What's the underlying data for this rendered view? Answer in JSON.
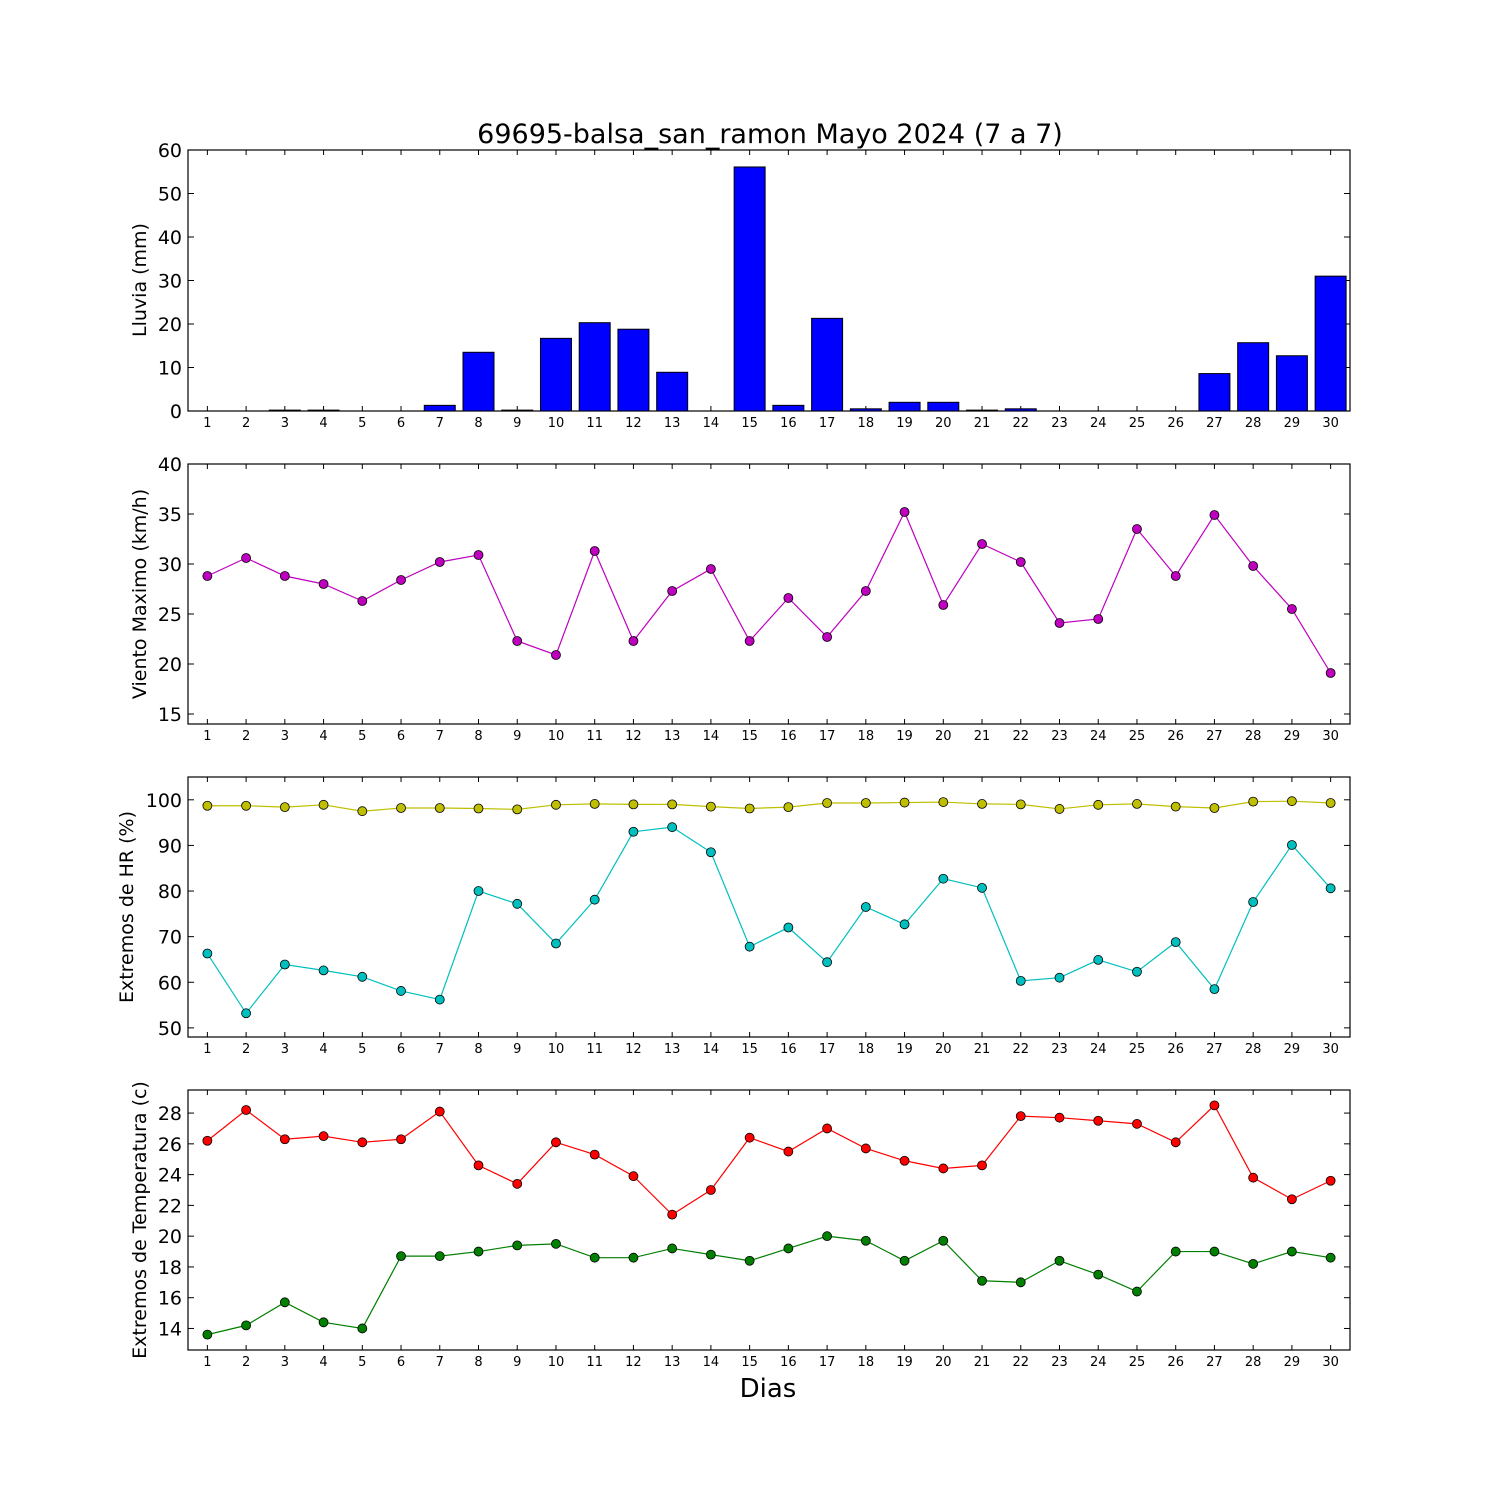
{
  "chart_data": [
    {
      "type": "bar",
      "title": "69695-balsa_san_ramon Mayo 2024  (7 a 7)",
      "ylabel": "Lluvia (mm)",
      "xlabel": "",
      "ylim": [
        0,
        60
      ],
      "yticks": [
        0,
        10,
        20,
        30,
        40,
        50,
        60
      ],
      "categories": [
        1,
        2,
        3,
        4,
        5,
        6,
        7,
        8,
        9,
        10,
        11,
        12,
        13,
        14,
        15,
        16,
        17,
        18,
        19,
        20,
        21,
        22,
        23,
        24,
        25,
        26,
        27,
        28,
        29,
        30
      ],
      "values": [
        0,
        0,
        0.2,
        0.2,
        0,
        0,
        1.3,
        13.5,
        0.2,
        16.7,
        20.3,
        18.8,
        8.9,
        0,
        56.1,
        1.3,
        21.3,
        0.5,
        2.0,
        2.0,
        0.2,
        0.5,
        0,
        0,
        0,
        0,
        8.6,
        15.7,
        12.7,
        31.0
      ],
      "color": "#0000ff",
      "grid": false
    },
    {
      "type": "line",
      "ylabel": "Viento Maximo (km/h)",
      "xlabel": "",
      "ylim": [
        14,
        40
      ],
      "yticks": [
        15,
        20,
        25,
        30,
        35,
        40
      ],
      "x": [
        1,
        2,
        3,
        4,
        5,
        6,
        7,
        8,
        9,
        10,
        11,
        12,
        13,
        14,
        15,
        16,
        17,
        18,
        19,
        20,
        21,
        22,
        23,
        24,
        25,
        26,
        27,
        28,
        29,
        30
      ],
      "series": [
        {
          "values": [
            28.8,
            30.6,
            28.8,
            28.0,
            26.3,
            28.4,
            30.2,
            30.9,
            22.3,
            20.9,
            31.3,
            22.3,
            27.3,
            29.5,
            22.3,
            26.6,
            22.7,
            27.3,
            35.2,
            25.9,
            32.0,
            30.2,
            24.1,
            24.5,
            33.5,
            28.8,
            34.9,
            29.8,
            25.5,
            19.1
          ],
          "color": "#bf00bf"
        }
      ],
      "grid": false
    },
    {
      "type": "line",
      "ylabel": "Extremos de HR (%)",
      "xlabel": "",
      "ylim": [
        48,
        105
      ],
      "yticks": [
        50,
        60,
        70,
        80,
        90,
        100
      ],
      "x": [
        1,
        2,
        3,
        4,
        5,
        6,
        7,
        8,
        9,
        10,
        11,
        12,
        13,
        14,
        15,
        16,
        17,
        18,
        19,
        20,
        21,
        22,
        23,
        24,
        25,
        26,
        27,
        28,
        29,
        30
      ],
      "series": [
        {
          "values": [
            98.7,
            98.7,
            98.4,
            98.9,
            97.5,
            98.2,
            98.2,
            98.1,
            97.9,
            98.9,
            99.1,
            99.0,
            99.0,
            98.5,
            98.1,
            98.4,
            99.3,
            99.3,
            99.4,
            99.5,
            99.1,
            99.0,
            98.0,
            98.9,
            99.1,
            98.5,
            98.2,
            99.6,
            99.7,
            99.3
          ],
          "color": "#bfbf00"
        },
        {
          "values": [
            66.3,
            53.2,
            63.9,
            62.6,
            61.2,
            58.1,
            56.2,
            80.0,
            77.2,
            68.5,
            78.1,
            93.0,
            94.0,
            88.5,
            67.8,
            72.0,
            64.4,
            76.5,
            72.7,
            82.7,
            80.7,
            60.3,
            61.0,
            64.9,
            62.3,
            68.8,
            58.5,
            77.6,
            90.1,
            80.6
          ],
          "color": "#00bfbf"
        }
      ],
      "grid": false
    },
    {
      "type": "line",
      "ylabel": "Extremos de Temperatura (c)",
      "xlabel": "Dias",
      "ylim": [
        12.6,
        29.5
      ],
      "yticks": [
        14,
        16,
        18,
        20,
        22,
        24,
        26,
        28
      ],
      "x": [
        1,
        2,
        3,
        4,
        5,
        6,
        7,
        8,
        9,
        10,
        11,
        12,
        13,
        14,
        15,
        16,
        17,
        18,
        19,
        20,
        21,
        22,
        23,
        24,
        25,
        26,
        27,
        28,
        29,
        30
      ],
      "series": [
        {
          "values": [
            26.2,
            28.2,
            26.3,
            26.5,
            26.1,
            26.3,
            28.1,
            24.6,
            23.4,
            26.1,
            25.3,
            23.9,
            21.4,
            23.0,
            26.4,
            25.5,
            27.0,
            25.7,
            24.9,
            24.4,
            24.6,
            27.8,
            27.7,
            27.5,
            27.3,
            26.1,
            28.5,
            23.8,
            22.4,
            23.6
          ],
          "color": "#ff0000"
        },
        {
          "values": [
            13.6,
            14.2,
            15.7,
            14.4,
            14.0,
            18.7,
            18.7,
            19.0,
            19.4,
            19.5,
            18.6,
            18.6,
            19.2,
            18.8,
            18.4,
            19.2,
            20.0,
            19.7,
            18.4,
            19.7,
            17.1,
            17.0,
            18.4,
            17.5,
            16.4,
            19.0,
            19.0,
            18.2,
            19.0,
            18.6
          ],
          "color": "#007f00"
        }
      ],
      "grid": false
    }
  ]
}
